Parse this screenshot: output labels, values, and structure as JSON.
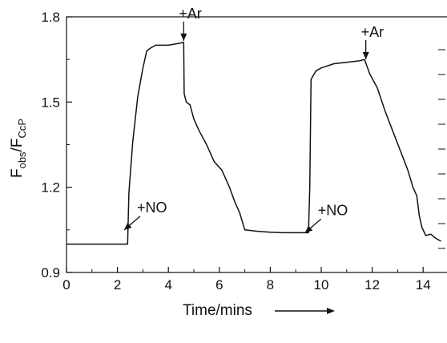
{
  "chart_data": {
    "type": "line",
    "title": "",
    "xlabel": "Time/mins",
    "ylabel": {
      "main": "F",
      "sub1": "obs",
      "sep": "/F",
      "sub2": "CcP"
    },
    "xlim": [
      0,
      15
    ],
    "ylim": [
      0.9,
      1.8
    ],
    "xticks": [
      0,
      2,
      4,
      6,
      8,
      10,
      12,
      14
    ],
    "xtick_labels": [
      "0",
      "2",
      "4",
      "6",
      "8",
      "10",
      "12",
      "14"
    ],
    "yticks": [
      0.9,
      1.2,
      1.5,
      1.8
    ],
    "ytick_labels": [
      "0.9",
      "1.2",
      "1.5",
      "1.8"
    ],
    "grid": false,
    "series": [
      {
        "color": "#111111",
        "x": [
          0.0,
          0.5,
          1.0,
          1.5,
          2.0,
          2.4,
          2.45,
          2.6,
          2.8,
          3.0,
          3.15,
          3.3,
          3.5,
          3.8,
          4.0,
          4.3,
          4.6,
          4.62,
          4.7,
          4.85,
          5.0,
          5.2,
          5.5,
          5.8,
          6.1,
          6.4,
          6.6,
          6.8,
          7.0,
          7.5,
          8.0,
          8.5,
          9.0,
          9.5,
          9.55,
          9.6,
          9.8,
          10.0,
          10.5,
          11.0,
          11.5,
          11.7,
          11.9,
          12.2,
          12.5,
          12.8,
          13.1,
          13.4,
          13.6,
          13.75,
          13.85,
          13.95,
          14.1,
          14.3,
          14.5,
          14.7
        ],
        "y": [
          1.0,
          1.0,
          1.0,
          1.0,
          1.0,
          1.0,
          1.18,
          1.36,
          1.52,
          1.62,
          1.68,
          1.69,
          1.7,
          1.7,
          1.7,
          1.705,
          1.71,
          1.53,
          1.5,
          1.49,
          1.44,
          1.4,
          1.35,
          1.29,
          1.26,
          1.2,
          1.15,
          1.11,
          1.05,
          1.045,
          1.042,
          1.04,
          1.04,
          1.04,
          1.2,
          1.58,
          1.61,
          1.62,
          1.635,
          1.64,
          1.645,
          1.65,
          1.6,
          1.55,
          1.47,
          1.4,
          1.33,
          1.26,
          1.2,
          1.17,
          1.1,
          1.06,
          1.03,
          1.035,
          1.02,
          1.01
        ]
      }
    ],
    "annotations": [
      {
        "label": "+NO",
        "x": 2.2,
        "y": 1.05
      },
      {
        "label": "+Ar",
        "x": 4.6,
        "y": 1.71
      },
      {
        "label": "+NO",
        "x": 9.3,
        "y": 1.04
      },
      {
        "label": "+Ar",
        "x": 11.75,
        "y": 1.645
      }
    ]
  }
}
